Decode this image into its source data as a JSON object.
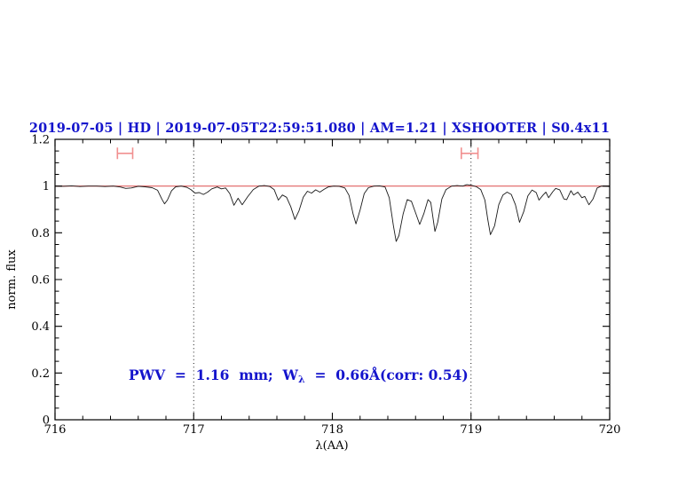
{
  "title": "2019-07-05 | HD | 2019-07-05T22:59:51.080 | AM=1.21 | XSHOOTER | S0.4x11",
  "annotation": {
    "part1": "PWV  =  1.16  mm;  W",
    "sub": "λ",
    "part2": "  =  0.66Å(corr: 0.54)"
  },
  "colors": {
    "text_blue": "#1414cc",
    "spectrum_black": "#1a1a1a",
    "continuum_red": "#e06060",
    "marker_pink": "#f19090",
    "axis_black": "#000000"
  },
  "chart_data": {
    "type": "line",
    "title": "2019-07-05 | HD | 2019-07-05T22:59:51.080 | AM=1.21 | XSHOOTER | S0.4x11",
    "xlabel": "λ(AA)",
    "ylabel": "norm. flux",
    "xlim": [
      716,
      720
    ],
    "ylim": [
      0,
      1.2
    ],
    "grid": false,
    "legend": "none",
    "x_major_ticks": [
      716,
      717,
      718,
      719,
      720
    ],
    "x_tick_labels": [
      "716",
      "717",
      "718",
      "719",
      "720"
    ],
    "x_minor_step": 0.2,
    "y_major_ticks": [
      0,
      0.2,
      0.4,
      0.6,
      0.8,
      1,
      1.2
    ],
    "y_tick_labels": [
      "0",
      "0.2",
      "0.4",
      "0.6",
      "0.8",
      "1",
      "1.2"
    ],
    "y_minor_step": 0.05,
    "dotted_guides_x": [
      717,
      719
    ],
    "continuum_level": 1.0,
    "range_markers": [
      {
        "x_start": 716.45,
        "x_end": 716.56,
        "y": 1.14
      },
      {
        "x_start": 718.93,
        "x_end": 719.05,
        "y": 1.14
      }
    ],
    "series": [
      {
        "name": "observed-spectrum",
        "color": "#1a1a1a",
        "points": [
          [
            716.0,
            1.0
          ],
          [
            716.06,
            0.999
          ],
          [
            716.12,
            1.001
          ],
          [
            716.18,
            0.998
          ],
          [
            716.24,
            1.0
          ],
          [
            716.3,
            1.0
          ],
          [
            716.36,
            0.998
          ],
          [
            716.42,
            1.0
          ],
          [
            716.47,
            0.996
          ],
          [
            716.51,
            0.99
          ],
          [
            716.55,
            0.992
          ],
          [
            716.6,
            0.999
          ],
          [
            716.65,
            0.997
          ],
          [
            716.7,
            0.993
          ],
          [
            716.74,
            0.982
          ],
          [
            716.77,
            0.945
          ],
          [
            716.79,
            0.924
          ],
          [
            716.81,
            0.94
          ],
          [
            716.84,
            0.98
          ],
          [
            716.87,
            0.997
          ],
          [
            716.91,
            1.0
          ],
          [
            716.95,
            0.995
          ],
          [
            716.98,
            0.985
          ],
          [
            717.01,
            0.97
          ],
          [
            717.04,
            0.972
          ],
          [
            717.07,
            0.964
          ],
          [
            717.1,
            0.974
          ],
          [
            717.13,
            0.988
          ],
          [
            717.17,
            0.996
          ],
          [
            717.2,
            0.988
          ],
          [
            717.23,
            0.992
          ],
          [
            717.26,
            0.968
          ],
          [
            717.29,
            0.918
          ],
          [
            717.32,
            0.948
          ],
          [
            717.35,
            0.92
          ],
          [
            717.39,
            0.955
          ],
          [
            717.43,
            0.985
          ],
          [
            717.47,
            1.0
          ],
          [
            717.51,
            1.002
          ],
          [
            717.55,
            0.998
          ],
          [
            717.58,
            0.985
          ],
          [
            717.61,
            0.94
          ],
          [
            717.64,
            0.962
          ],
          [
            717.67,
            0.952
          ],
          [
            717.7,
            0.912
          ],
          [
            717.73,
            0.857
          ],
          [
            717.76,
            0.895
          ],
          [
            717.79,
            0.952
          ],
          [
            717.82,
            0.978
          ],
          [
            717.85,
            0.97
          ],
          [
            717.88,
            0.984
          ],
          [
            717.91,
            0.974
          ],
          [
            717.94,
            0.986
          ],
          [
            717.97,
            0.996
          ],
          [
            718.01,
            1.0
          ],
          [
            718.05,
            0.999
          ],
          [
            718.09,
            0.992
          ],
          [
            718.12,
            0.96
          ],
          [
            718.15,
            0.88
          ],
          [
            718.17,
            0.838
          ],
          [
            718.2,
            0.898
          ],
          [
            718.23,
            0.968
          ],
          [
            718.26,
            0.993
          ],
          [
            718.3,
            1.0
          ],
          [
            718.34,
            1.001
          ],
          [
            718.38,
            0.996
          ],
          [
            718.41,
            0.95
          ],
          [
            718.44,
            0.83
          ],
          [
            718.46,
            0.763
          ],
          [
            718.48,
            0.788
          ],
          [
            718.51,
            0.88
          ],
          [
            718.54,
            0.942
          ],
          [
            718.57,
            0.935
          ],
          [
            718.6,
            0.885
          ],
          [
            718.63,
            0.836
          ],
          [
            718.66,
            0.882
          ],
          [
            718.69,
            0.942
          ],
          [
            718.71,
            0.93
          ],
          [
            718.74,
            0.806
          ],
          [
            718.76,
            0.845
          ],
          [
            718.79,
            0.945
          ],
          [
            718.82,
            0.985
          ],
          [
            718.86,
            1.0
          ],
          [
            718.9,
            1.002
          ],
          [
            718.94,
            1.0
          ],
          [
            718.97,
            1.006
          ],
          [
            719.01,
            1.002
          ],
          [
            719.04,
            0.997
          ],
          [
            719.07,
            0.985
          ],
          [
            719.1,
            0.94
          ],
          [
            719.12,
            0.86
          ],
          [
            719.14,
            0.792
          ],
          [
            719.17,
            0.83
          ],
          [
            719.2,
            0.92
          ],
          [
            719.23,
            0.962
          ],
          [
            719.26,
            0.974
          ],
          [
            719.29,
            0.964
          ],
          [
            719.32,
            0.92
          ],
          [
            719.35,
            0.845
          ],
          [
            719.38,
            0.89
          ],
          [
            719.41,
            0.958
          ],
          [
            719.44,
            0.983
          ],
          [
            719.47,
            0.972
          ],
          [
            719.49,
            0.94
          ],
          [
            719.52,
            0.962
          ],
          [
            719.54,
            0.974
          ],
          [
            719.56,
            0.95
          ],
          [
            719.59,
            0.976
          ],
          [
            719.61,
            0.99
          ],
          [
            719.64,
            0.984
          ],
          [
            719.67,
            0.945
          ],
          [
            719.69,
            0.942
          ],
          [
            719.72,
            0.98
          ],
          [
            719.74,
            0.962
          ],
          [
            719.77,
            0.974
          ],
          [
            719.8,
            0.95
          ],
          [
            719.82,
            0.956
          ],
          [
            719.85,
            0.92
          ],
          [
            719.88,
            0.945
          ],
          [
            719.91,
            0.992
          ],
          [
            719.94,
            1.0
          ],
          [
            719.97,
            0.999
          ],
          [
            720.0,
            0.998
          ]
        ]
      }
    ]
  }
}
